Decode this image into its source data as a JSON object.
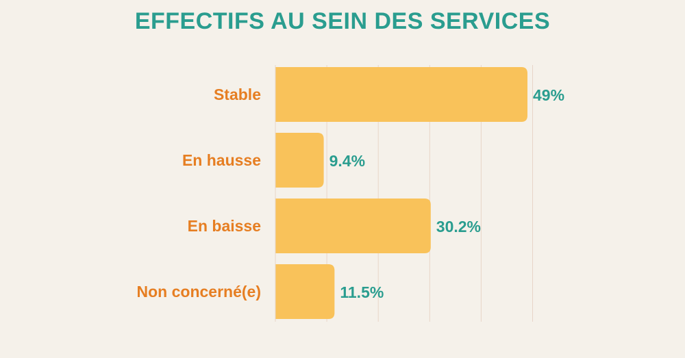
{
  "colors": {
    "background": "#f5f1ea",
    "title": "#2a9d8f",
    "category_text": "#e67e22",
    "value_text": "#2a9d8f",
    "bar": "#f9c25a",
    "gridline": "#e8d5c8"
  },
  "chart_data": {
    "type": "bar",
    "orientation": "horizontal",
    "title": "EFFECTIFS AU SEIN DES SERVICES",
    "categories": [
      "Stable",
      "En hausse",
      "En baisse",
      "Non concerné(e)"
    ],
    "values": [
      49,
      9.4,
      30.2,
      11.5
    ],
    "value_labels": [
      "49%",
      "9.4%",
      "30.2%",
      "11.5%"
    ],
    "xlim": [
      0,
      50
    ],
    "grid": true,
    "legend": "none"
  }
}
